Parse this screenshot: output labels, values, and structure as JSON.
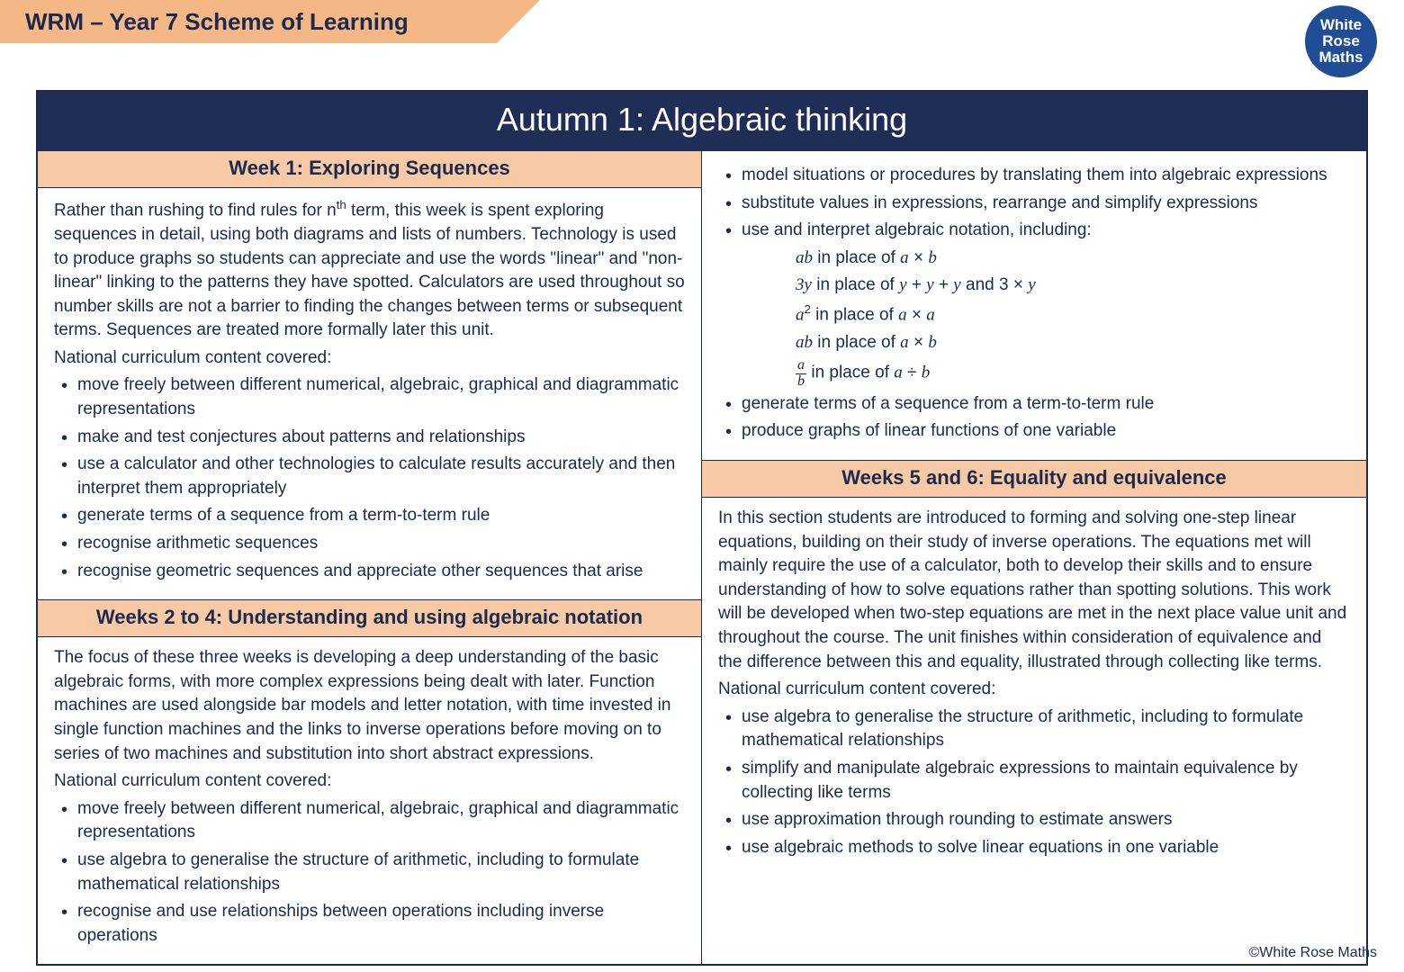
{
  "header": {
    "title": "WRM – Year 7 Scheme of Learning",
    "logo_line1": "White",
    "logo_line2": "Rose",
    "logo_line3": "Maths"
  },
  "colors": {
    "ribbon": "#f4b785",
    "section_header": "#f7c9a4",
    "title_bar": "#1f2d57",
    "logo": "#1f4e96",
    "text": "#1b2a4e",
    "background": "#ffffff"
  },
  "main_title": "Autumn 1: Algebraic thinking",
  "week1": {
    "title": "Week 1: Exploring Sequences",
    "intro": "Rather than rushing to find rules for nᵗʰ term, this week is spent exploring sequences in detail, using both diagrams and lists of numbers.  Technology is used to produce graphs so students can appreciate and use the words \"linear\" and \"non-linear\" linking to the patterns they have spotted.  Calculators are used throughout so number skills are not a barrier to finding the changes between terms or subsequent terms.  Sequences are treated more formally later this unit.",
    "nc_label": "National curriculum content covered:",
    "bullets": [
      "move freely between different numerical, algebraic, graphical and diagrammatic representations",
      "make and test conjectures about patterns and relationships",
      "use a calculator and other technologies to calculate results accurately and then interpret them appropriately",
      "generate terms of a sequence from a term-to-term rule",
      "recognise arithmetic sequences",
      "recognise geometric sequences and appreciate other sequences that arise"
    ]
  },
  "weeks24": {
    "title": "Weeks 2 to 4: Understanding and using algebraic notation",
    "intro": "The focus of these three weeks is developing a deep understanding of the basic algebraic forms, with more complex expressions being dealt with later. Function machines are used alongside bar models and letter notation, with time invested in single function machines and the links to inverse operations before moving on to series of two machines and substitution into short abstract expressions.",
    "nc_label": "National curriculum content covered:",
    "bullets_left": [
      "move freely between different numerical, algebraic, graphical and diagrammatic representations",
      "use algebra to generalise the structure of arithmetic, including to formulate mathematical relationships",
      "recognise and use relationships between operations including inverse operations"
    ],
    "bullets_right_pre": [
      "model situations or procedures by translating them into algebraic expressions",
      "substitute values in expressions, rearrange and simplify expressions",
      "use and interpret algebraic notation, including:"
    ],
    "notation": {
      "line1": "ab in place of a × b",
      "line2": "3y in place of y + y + y and 3 ×  y",
      "line3": "a² in place of a × a",
      "line4": "ab in place of a × b",
      "line5_frac_num": "a",
      "line5_frac_den": "b",
      "line5_rest": " in place of a ÷ b"
    },
    "bullets_right_post": [
      "generate terms of a sequence from a term-to-term rule",
      "produce graphs of linear functions of one variable"
    ]
  },
  "weeks56": {
    "title": "Weeks 5 and 6: Equality and equivalence",
    "intro": "In this section students are introduced to forming and solving one-step linear equations, building on their study of inverse operations.  The equations met will mainly require the use of a calculator, both to develop their skills and to ensure understanding of how to solve equations rather than spotting solutions. This work will be developed when two-step equations are met in the next place value unit and throughout the course.  The unit finishes within consideration of equivalence and the difference between this and equality, illustrated through collecting like terms.",
    "nc_label": "National curriculum content covered:",
    "bullets": [
      "use algebra to generalise the structure of arithmetic, including to formulate mathematical relationships",
      "simplify and manipulate algebraic expressions to maintain equivalence by collecting like terms",
      "use approximation through rounding to estimate answers",
      "use algebraic methods to solve linear equations in one variable"
    ]
  },
  "footer": "©White Rose Maths"
}
